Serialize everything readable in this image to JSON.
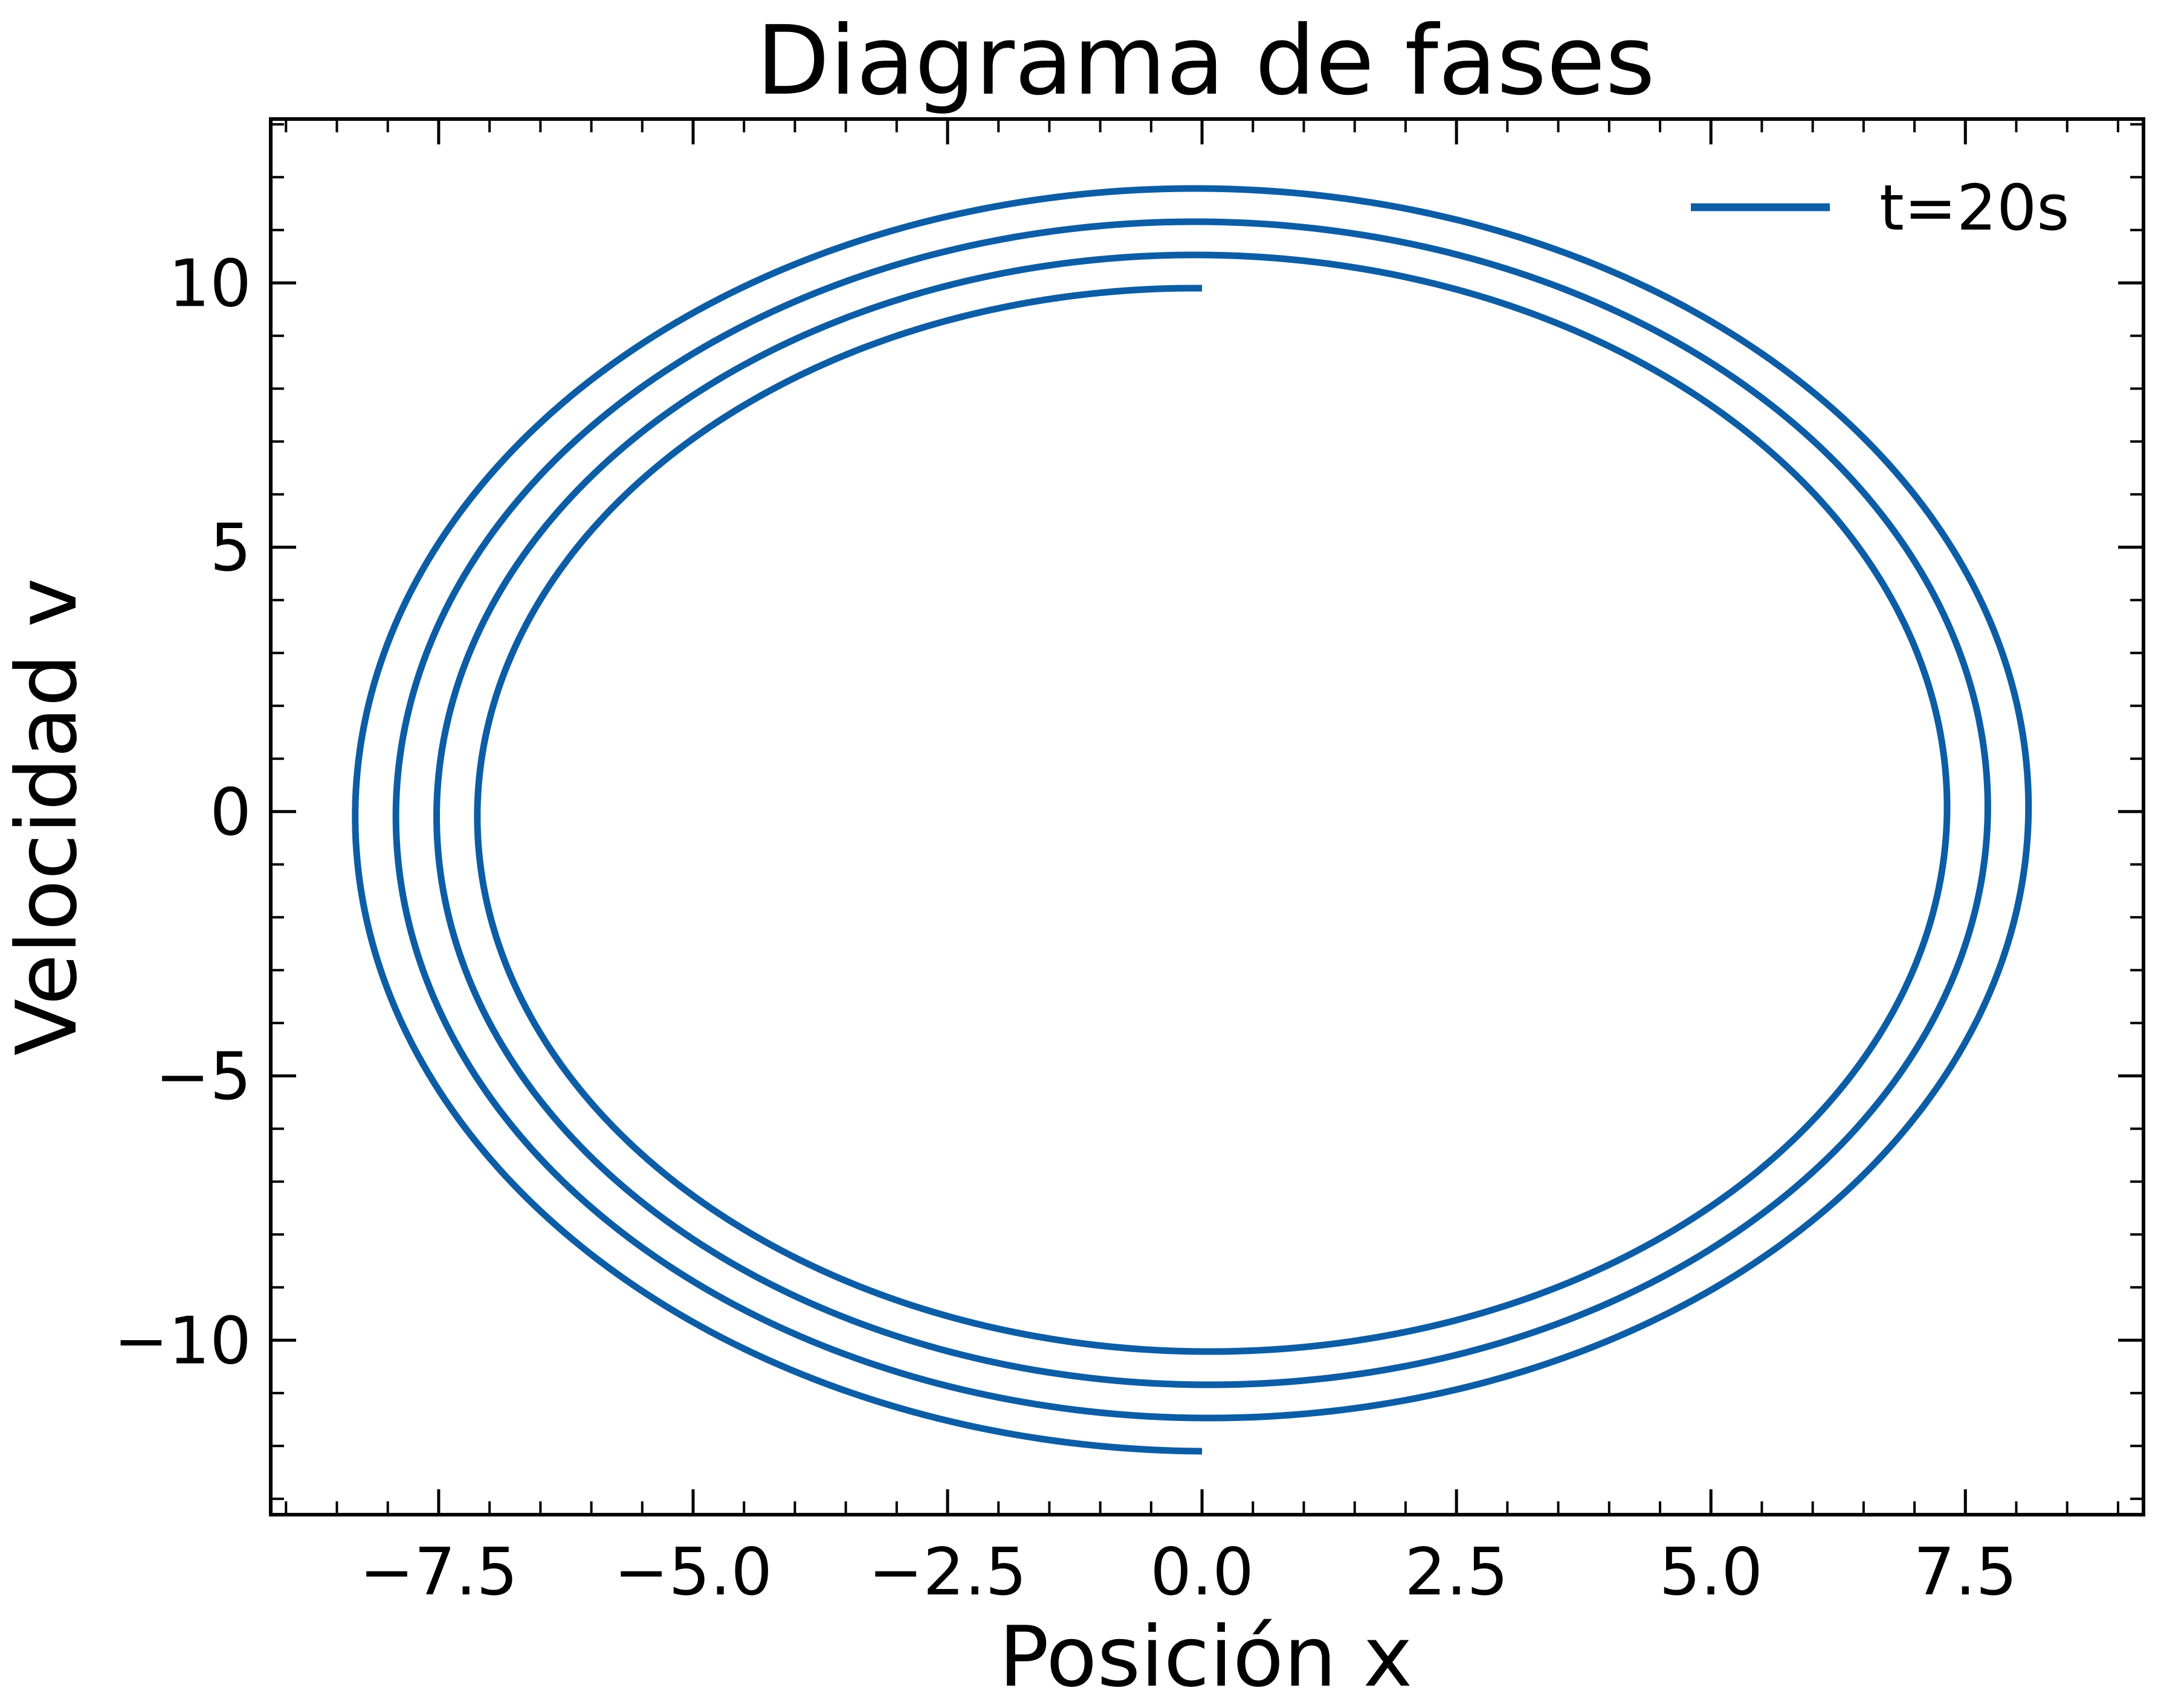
{
  "chart_data": {
    "type": "line",
    "title": "Diagrama de fases",
    "xlabel": "Posición x",
    "ylabel": "Velocidad v",
    "xlim": [
      -9.15,
      9.25
    ],
    "ylim": [
      -13.3,
      13.1
    ],
    "x_ticks": [
      -7.5,
      -5.0,
      -2.5,
      0.0,
      2.5,
      5.0,
      7.5
    ],
    "x_tick_labels": [
      "−7.5",
      "−5.0",
      "−2.5",
      "0.0",
      "2.5",
      "5.0",
      "7.5"
    ],
    "y_ticks": [
      -10,
      -5,
      0,
      5,
      10
    ],
    "y_tick_labels": [
      "−10",
      "−5",
      "0",
      "5",
      "10"
    ],
    "grid": false,
    "ticks_direction": "in",
    "ticks_on_all_sides": true,
    "legend_position": "top-right",
    "series": [
      {
        "name": "t=20s",
        "color": "#0c5da5",
        "spiral": {
          "start": {
            "x": 0.0,
            "v": -12.1
          },
          "end": {
            "x": 0.0,
            "v": 9.9
          },
          "x_amplitude_start": 8.42,
          "x_amplitude_end": 7.02,
          "v_amplitude_start": 12.1,
          "v_amplitude_end": 9.9,
          "turns": 3.5,
          "direction": "clockwise"
        }
      }
    ]
  }
}
